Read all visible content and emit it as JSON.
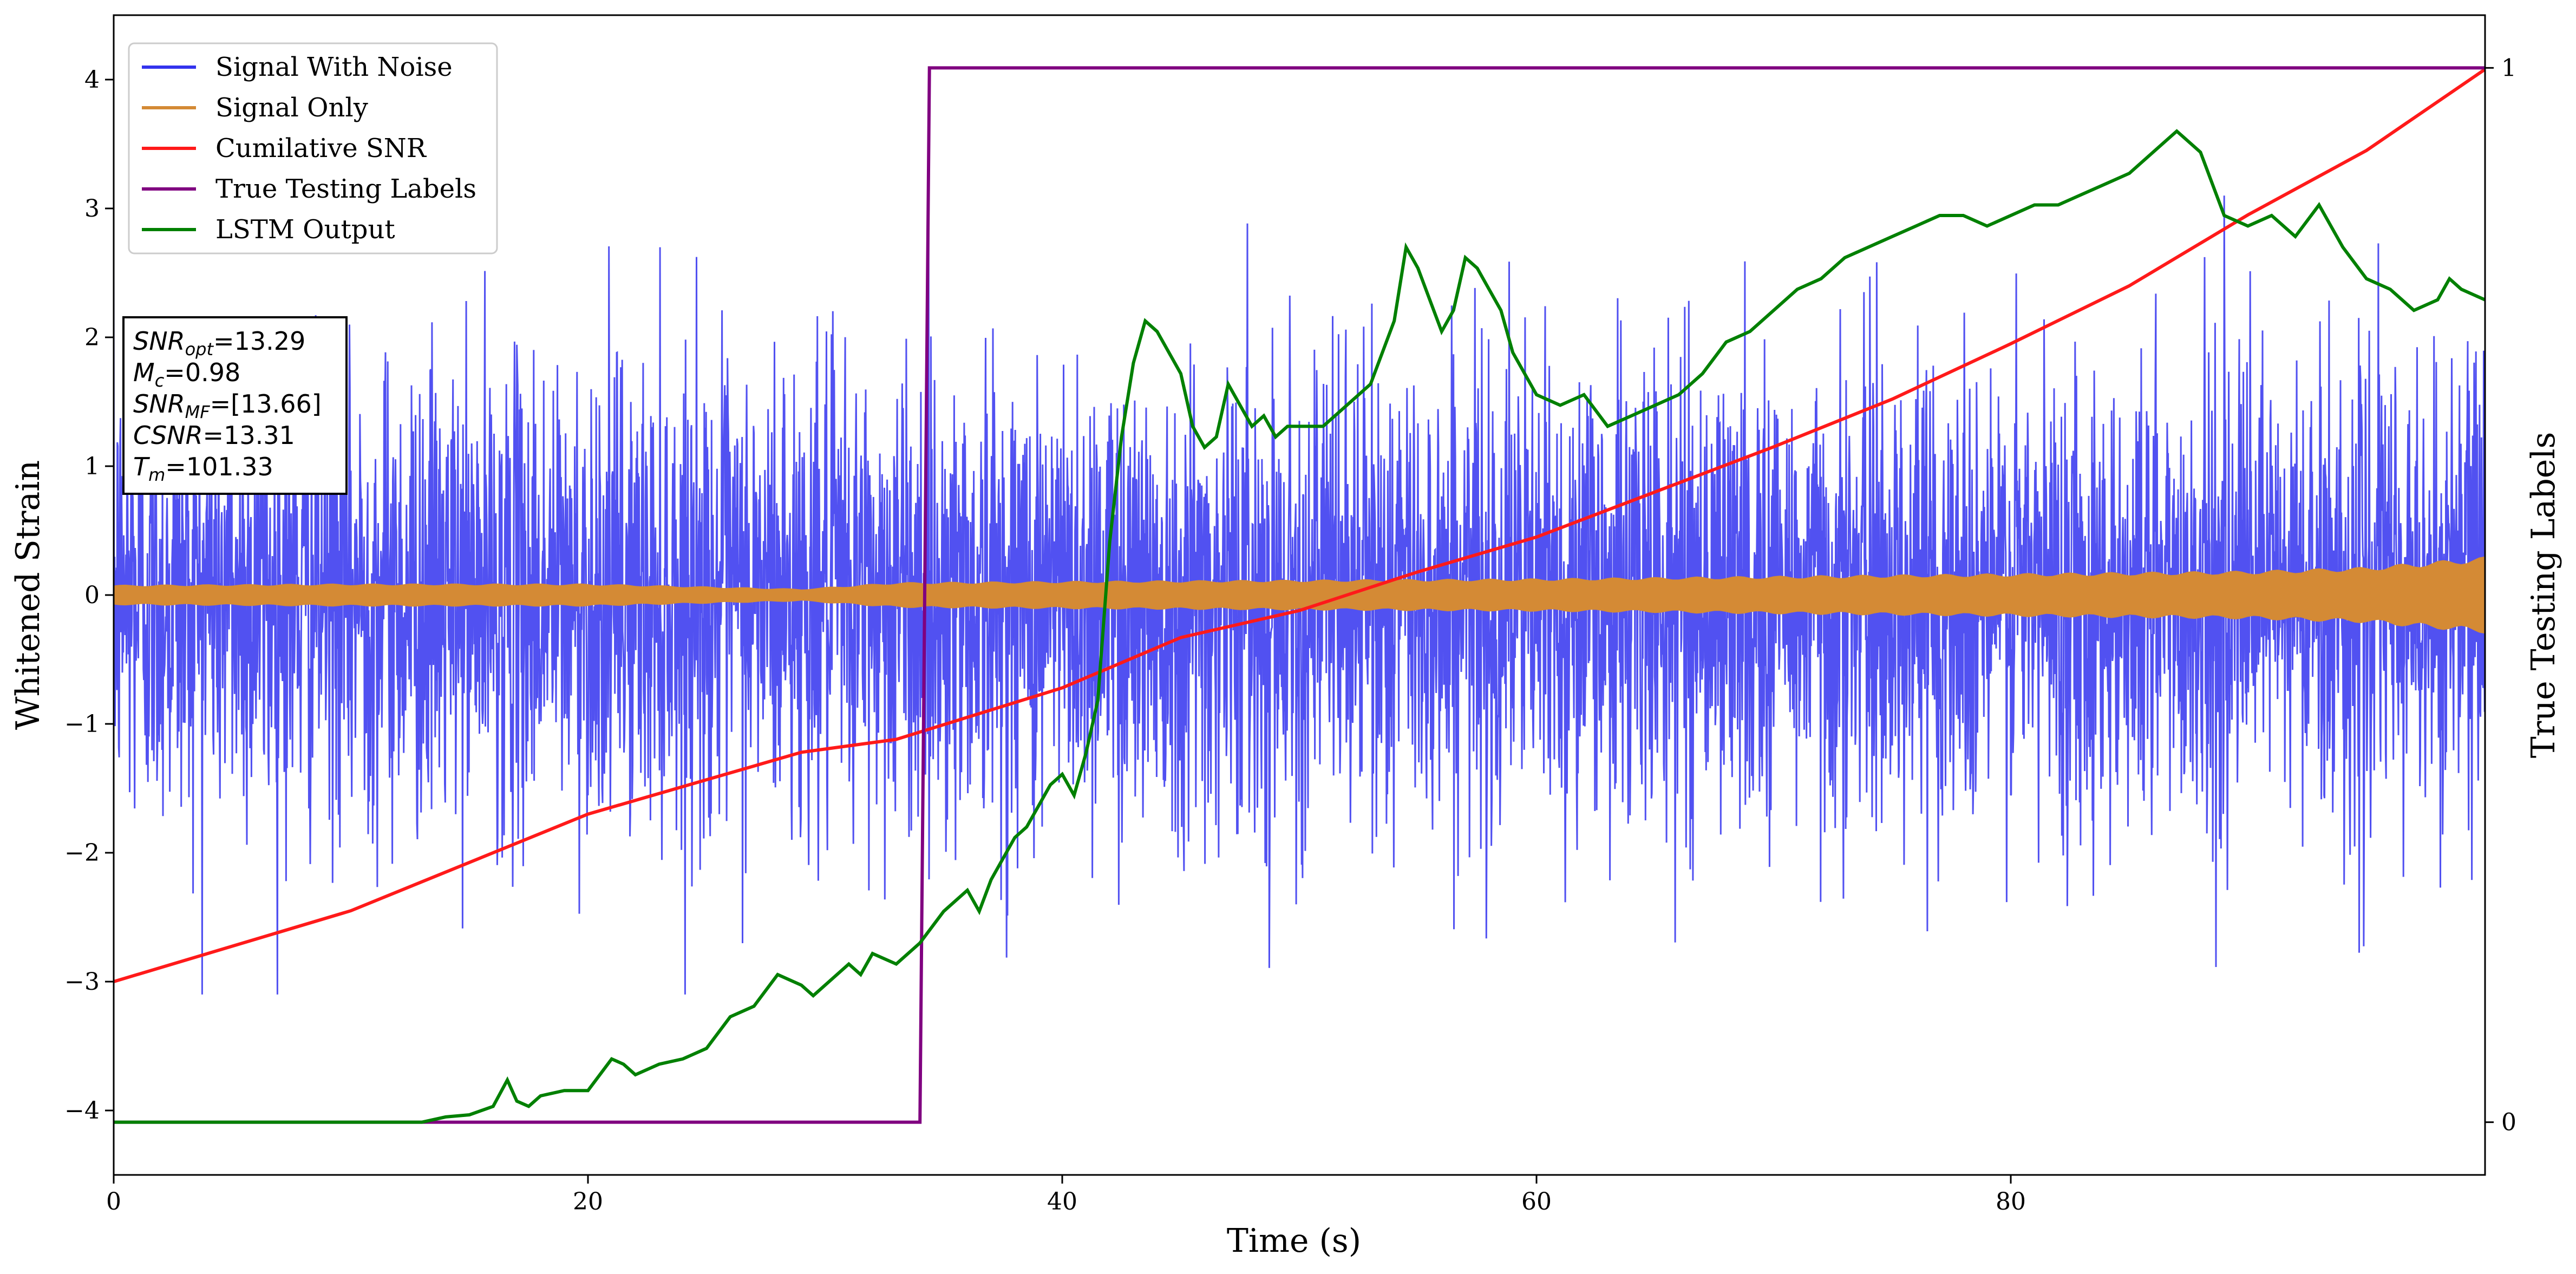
{
  "chart_data": {
    "type": "line",
    "xlabel": "Time (s)",
    "ylabel": "Whitened Strain",
    "y2label": "True Testing Labels",
    "xlim": [
      0,
      100
    ],
    "ylim": [
      -4.5,
      4.5
    ],
    "y2lim": [
      -0.05,
      1.05
    ],
    "xticks": [
      0,
      20,
      40,
      60,
      80
    ],
    "yticks": [
      -4,
      -3,
      -2,
      -1,
      0,
      1,
      2,
      3,
      4
    ],
    "y2ticks": [
      0,
      1
    ],
    "legend_position": "upper-left",
    "series": [
      {
        "name": "Signal With Noise",
        "axis": "left",
        "color": "#3333ee",
        "style": "dense-noise",
        "amplitude_note": "approx std 0.9, peaks to about +/-3"
      },
      {
        "name": "Signal Only",
        "axis": "left",
        "color": "#d48a35",
        "style": "band",
        "envelope_x": [
          0,
          10,
          20,
          29,
          33,
          40,
          50,
          60,
          70,
          80,
          90,
          95,
          100
        ],
        "envelope_amp": [
          0.08,
          0.09,
          0.09,
          0.05,
          0.1,
          0.11,
          0.12,
          0.13,
          0.15,
          0.17,
          0.19,
          0.22,
          0.3
        ]
      },
      {
        "name": "Cumilative SNR",
        "axis": "left",
        "color": "#ff1a1a",
        "x": [
          0,
          10,
          20,
          29,
          33,
          40,
          45,
          50,
          55,
          60,
          65,
          70,
          75,
          80,
          85,
          90,
          95,
          100
        ],
        "y": [
          -3.0,
          -2.45,
          -1.7,
          -1.22,
          -1.12,
          -0.72,
          -0.33,
          -0.12,
          0.18,
          0.45,
          0.8,
          1.15,
          1.52,
          1.95,
          2.4,
          2.95,
          3.45,
          4.08
        ]
      },
      {
        "name": "True Testing Labels",
        "axis": "right",
        "color": "#800080",
        "x": [
          0,
          34.0,
          34.4,
          100
        ],
        "y": [
          0,
          0,
          1,
          1
        ]
      },
      {
        "name": "LSTM Output",
        "axis": "right",
        "color": "#008000",
        "x": [
          0,
          13,
          14,
          15,
          16,
          16.6,
          17,
          17.5,
          18,
          19,
          20,
          21,
          21.5,
          22,
          22.5,
          23,
          24,
          25,
          26,
          27,
          28,
          29,
          29.5,
          30,
          31,
          31.5,
          32,
          33,
          34,
          35,
          36,
          36.5,
          37,
          37.5,
          38,
          38.5,
          39,
          39.5,
          40,
          40.5,
          41,
          41.5,
          42,
          42.5,
          43,
          43.5,
          44,
          44.5,
          45,
          45.5,
          46,
          46.5,
          47,
          47.5,
          48,
          48.5,
          49,
          49.5,
          50,
          51,
          52,
          53,
          54,
          54.5,
          55,
          55.5,
          56,
          56.5,
          57,
          57.5,
          58,
          58.5,
          59,
          60,
          61,
          62,
          63,
          64,
          65,
          66,
          67,
          68,
          69,
          70,
          71,
          72,
          73,
          74,
          75,
          76,
          77,
          78,
          79,
          80,
          81,
          82,
          83,
          84,
          85,
          86,
          87,
          88,
          89,
          90,
          91,
          92,
          93,
          94,
          95,
          96,
          97,
          98,
          98.5,
          99,
          100
        ],
        "y": [
          0,
          0,
          0.005,
          0.007,
          0.015,
          0.04,
          0.02,
          0.015,
          0.025,
          0.03,
          0.03,
          0.06,
          0.055,
          0.045,
          0.05,
          0.055,
          0.06,
          0.07,
          0.1,
          0.11,
          0.14,
          0.13,
          0.12,
          0.13,
          0.15,
          0.14,
          0.16,
          0.15,
          0.17,
          0.2,
          0.22,
          0.2,
          0.23,
          0.25,
          0.27,
          0.28,
          0.3,
          0.32,
          0.33,
          0.31,
          0.35,
          0.4,
          0.55,
          0.65,
          0.72,
          0.76,
          0.75,
          0.73,
          0.71,
          0.66,
          0.64,
          0.65,
          0.7,
          0.68,
          0.66,
          0.67,
          0.65,
          0.66,
          0.66,
          0.66,
          0.68,
          0.7,
          0.76,
          0.83,
          0.81,
          0.78,
          0.75,
          0.77,
          0.82,
          0.81,
          0.79,
          0.77,
          0.73,
          0.69,
          0.68,
          0.69,
          0.66,
          0.67,
          0.68,
          0.69,
          0.71,
          0.74,
          0.75,
          0.77,
          0.79,
          0.8,
          0.82,
          0.83,
          0.84,
          0.85,
          0.86,
          0.86,
          0.85,
          0.86,
          0.87,
          0.87,
          0.88,
          0.89,
          0.9,
          0.92,
          0.94,
          0.92,
          0.86,
          0.85,
          0.86,
          0.84,
          0.87,
          0.83,
          0.8,
          0.79,
          0.77,
          0.78,
          0.8,
          0.79,
          0.78
        ]
      }
    ],
    "annotation_lines": [
      {
        "base": "SNR",
        "sub": "opt",
        "rest": "=13.29"
      },
      {
        "base": "M",
        "sub": "c",
        "rest": "=0.98"
      },
      {
        "base": "SNR",
        "sub": "MF",
        "rest": "=[13.66]"
      },
      {
        "base": "CSNR",
        "sub": "",
        "rest": "=13.31"
      },
      {
        "base": "T",
        "sub": "m",
        "rest": "=101.33"
      }
    ]
  }
}
